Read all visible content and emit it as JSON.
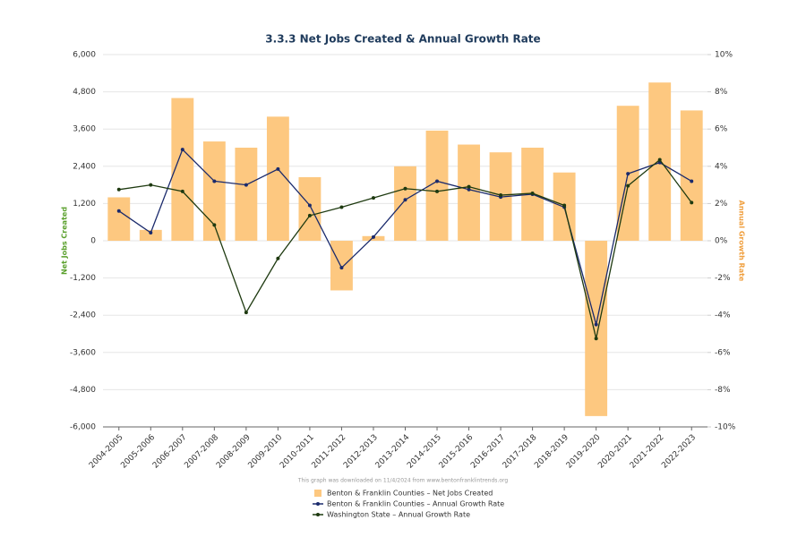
{
  "chart_data": {
    "type": "bar-line",
    "title": "3.3.3 Net Jobs Created & Annual Growth Rate",
    "y_label": "Net Jobs Created",
    "y2_label": "Annual Growth Rate",
    "note": "This graph was downloaded on 11/4/2024 from www.bentonfranklintrends.org",
    "categories": [
      "2004-2005",
      "2005-2006",
      "2006-2007",
      "2007-2008",
      "2008-2009",
      "2009-2010",
      "2010-2011",
      "2011-2012",
      "2012-2013",
      "2013-2014",
      "2014-2015",
      "2015-2016",
      "2016-2017",
      "2017-2018",
      "2018-2019",
      "2019-2020",
      "2020-2021",
      "2021-2022",
      "2022-2023"
    ],
    "ylim": [
      -6000,
      6000
    ],
    "yticks": [
      {
        "value": -6000,
        "label": "-6,000"
      },
      {
        "value": -4800,
        "label": "-4,800"
      },
      {
        "value": -3600,
        "label": "-3,600"
      },
      {
        "value": -2400,
        "label": "-2,400"
      },
      {
        "value": -1200,
        "label": "-1,200"
      },
      0,
      {
        "value": 1200,
        "label": "1,200"
      },
      {
        "value": 2400,
        "label": "2,400"
      },
      {
        "value": 3600,
        "label": "3,600"
      },
      {
        "value": 4800,
        "label": "4,800"
      },
      {
        "value": 6000,
        "label": "6,000"
      }
    ],
    "y2lim": [
      -10,
      10
    ],
    "y2ticks": [
      {
        "value": -10,
        "label": "-10%"
      },
      {
        "value": -8,
        "label": "-8%"
      },
      {
        "value": -6,
        "label": "-6%"
      },
      {
        "value": -4,
        "label": "-4%"
      },
      {
        "value": -2,
        "label": "-2%"
      },
      {
        "value": 0,
        "label": "0%"
      },
      {
        "value": 2,
        "label": "2%"
      },
      {
        "value": 4,
        "label": "4%"
      },
      {
        "value": 6,
        "label": "6%"
      },
      {
        "value": 8,
        "label": "8%"
      },
      {
        "value": 10,
        "label": "10%"
      }
    ],
    "grid": true,
    "series": [
      {
        "name": "Benton & Franklin Counties – Net Jobs Created",
        "kind": "bar",
        "color": "#fdc880",
        "values": [
          1400,
          350,
          4600,
          3200,
          3000,
          4000,
          2050,
          -1600,
          150,
          2400,
          3550,
          3100,
          2850,
          3000,
          2200,
          -5650,
          4350,
          5100,
          4200
        ]
      },
      {
        "name": "Benton & Franklin Counties – Annual Growth Rate",
        "kind": "line",
        "axis": "y2",
        "color": "#1a2a6c",
        "values": [
          1.6,
          0.43,
          4.9,
          3.2,
          3.0,
          3.85,
          1.9,
          -1.45,
          0.2,
          2.2,
          3.2,
          2.75,
          2.35,
          2.5,
          1.8,
          -4.5,
          3.6,
          4.2,
          3.2
        ]
      },
      {
        "name": "Washington State – Annual Growth Rate",
        "kind": "line",
        "axis": "y2",
        "color": "#1e3a10",
        "values": [
          2.75,
          3.0,
          2.65,
          0.85,
          -3.85,
          -0.95,
          1.35,
          1.8,
          2.3,
          2.8,
          2.65,
          2.9,
          2.45,
          2.55,
          1.9,
          -5.25,
          2.95,
          4.35,
          2.05
        ]
      }
    ]
  }
}
